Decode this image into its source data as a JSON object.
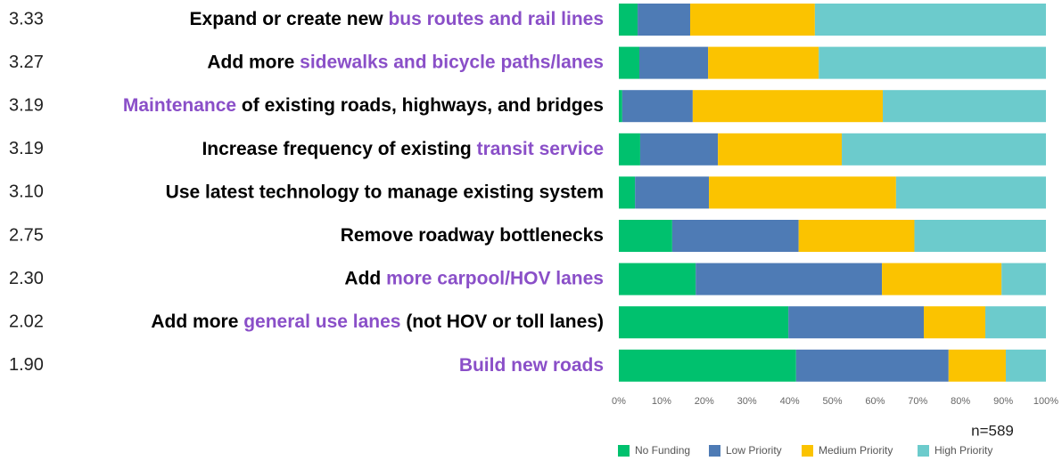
{
  "chart_data": {
    "type": "stacked-bar-horizontal",
    "categories": [
      [
        {
          "text": "Expand or create new ",
          "color": "#000000"
        },
        {
          "text": "bus routes and rail lines",
          "color": "#8a4fc8"
        }
      ],
      [
        {
          "text": "Add more ",
          "color": "#000000"
        },
        {
          "text": "sidewalks and bicycle paths/lanes",
          "color": "#8a4fc8"
        }
      ],
      [
        {
          "text": "Maintenance",
          "color": "#8a4fc8"
        },
        {
          "text": " of existing roads, highways, and bridges",
          "color": "#000000"
        }
      ],
      [
        {
          "text": "Increase frequency of existing ",
          "color": "#000000"
        },
        {
          "text": "transit service",
          "color": "#8a4fc8"
        }
      ],
      [
        {
          "text": "Use latest technology to manage existing system",
          "color": "#000000"
        }
      ],
      [
        {
          "text": "Remove roadway bottlenecks",
          "color": "#000000"
        }
      ],
      [
        {
          "text": "Add ",
          "color": "#000000"
        },
        {
          "text": "more carpool/HOV lanes",
          "color": "#8a4fc8"
        }
      ],
      [
        {
          "text": "Add more ",
          "color": "#000000"
        },
        {
          "text": "general use lanes",
          "color": "#8a4fc8"
        },
        {
          "text": " (not HOV or toll lanes)",
          "color": "#000000"
        }
      ],
      [
        {
          "text": "Build new roads",
          "color": "#8a4fc8"
        }
      ]
    ],
    "scores": [
      3.33,
      3.27,
      3.19,
      3.19,
      {
        "value": 3.1,
        "label": "3.10"
      },
      2.75,
      {
        "value": 2.3,
        "label": "2.30"
      },
      2.02,
      {
        "value": 1.9,
        "label": "1.90"
      }
    ],
    "series": [
      {
        "name": "No Funding",
        "color": "#00c16e",
        "values": [
          4.4,
          4.8,
          0.8,
          5.0,
          3.8,
          12.5,
          18.0,
          39.7,
          41.5
        ]
      },
      {
        "name": "Low Priority",
        "color": "#4e7bb5",
        "values": [
          12.3,
          16.1,
          16.5,
          18.2,
          17.3,
          29.6,
          43.6,
          31.7,
          35.7
        ]
      },
      {
        "name": "Medium Priority",
        "color": "#fbc300",
        "values": [
          29.2,
          25.9,
          44.5,
          29.0,
          43.8,
          27.1,
          28.0,
          14.4,
          13.4
        ]
      },
      {
        "name": "High Priority",
        "color": "#6ccbcc",
        "values": [
          54.1,
          53.2,
          38.2,
          47.8,
          35.1,
          30.8,
          10.4,
          14.2,
          9.4
        ]
      }
    ],
    "xlim": [
      0,
      100
    ],
    "xticks": [
      {
        "value": 0,
        "label": "0%"
      },
      {
        "value": 10,
        "label": "10%"
      },
      {
        "value": 20,
        "label": "20%"
      },
      {
        "value": 30,
        "label": "30%"
      },
      {
        "value": 40,
        "label": "40%"
      },
      {
        "value": 50,
        "label": "50%"
      },
      {
        "value": 60,
        "label": "60%"
      },
      {
        "value": 70,
        "label": "70%"
      },
      {
        "value": 80,
        "label": "80%"
      },
      {
        "value": 90,
        "label": "90%"
      },
      {
        "value": 100,
        "label": "100%"
      }
    ],
    "annotation": "n=589",
    "legend": "bottom"
  }
}
